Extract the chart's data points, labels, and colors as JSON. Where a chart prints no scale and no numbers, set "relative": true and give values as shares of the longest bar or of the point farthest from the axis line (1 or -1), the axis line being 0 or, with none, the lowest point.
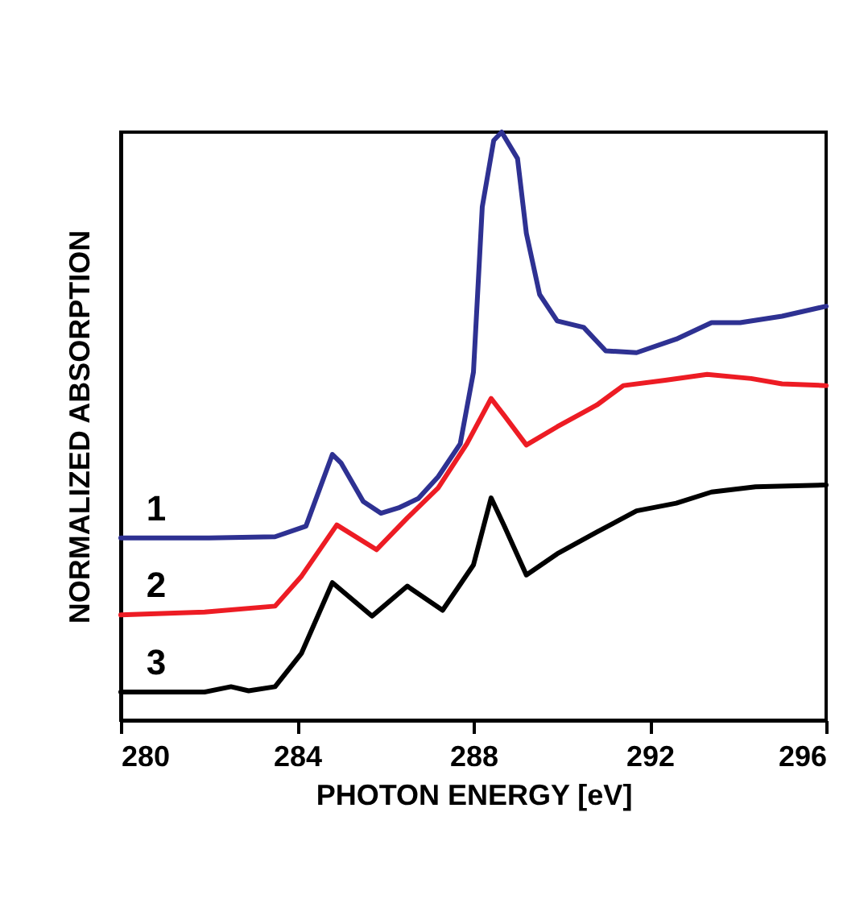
{
  "chart_data": {
    "type": "line",
    "xlabel": "PHOTON ENERGY [eV]",
    "ylabel": "NORMALIZED ABSORPTION",
    "relative": true,
    "xlim": [
      280,
      296
    ],
    "xticks": [
      280,
      284,
      288,
      292,
      296
    ],
    "grid": false,
    "legend": false,
    "x": [
      280,
      282,
      283.5,
      284.2,
      284.8,
      285.0,
      285.5,
      285.9,
      286.3,
      286.75,
      287.2,
      287.7,
      288.0,
      288.2,
      288.46,
      288.64,
      289.0,
      289.2,
      289.5,
      289.9,
      290.5,
      291.0,
      291.7,
      292.6,
      293.4,
      294.05,
      295.0,
      296
    ],
    "series": [
      {
        "name": "1",
        "color": "#2e3192",
        "values": [
          0.31,
          0.31,
          0.312,
          0.33,
          0.452,
          0.437,
          0.372,
          0.352,
          0.361,
          0.377,
          0.414,
          0.47,
          0.592,
          0.873,
          0.986,
          1,
          0.955,
          0.828,
          0.724,
          0.679,
          0.668,
          0.628,
          0.625,
          0.648,
          0.676,
          0.676,
          0.687,
          0.704
        ]
      },
      {
        "name": "2",
        "color": "#ed1c24",
        "x": [
          280,
          281.9,
          283.5,
          284.1,
          284.9,
          285.8,
          286.5,
          287.2,
          287.85,
          288.4,
          288.7,
          289.2,
          289.9,
          290.8,
          291.4,
          292.35,
          293.3,
          294.3,
          295.0,
          296
        ],
        "values": [
          0.179,
          0.184,
          0.194,
          0.245,
          0.332,
          0.29,
          0.344,
          0.395,
          0.47,
          0.547,
          0.518,
          0.468,
          0.499,
          0.536,
          0.569,
          0.578,
          0.588,
          0.581,
          0.572,
          0.569
        ]
      },
      {
        "name": "3",
        "color": "#000000",
        "x": [
          280,
          281.9,
          282.5,
          282.9,
          283.5,
          284.1,
          284.8,
          285.7,
          286.5,
          287.3,
          288.0,
          288.4,
          288.7,
          289.2,
          289.9,
          290.8,
          291.7,
          292.6,
          293.4,
          294.4,
          296
        ],
        "values": [
          0.048,
          0.048,
          0.057,
          0.05,
          0.057,
          0.114,
          0.234,
          0.177,
          0.228,
          0.187,
          0.264,
          0.378,
          0.33,
          0.247,
          0.283,
          0.32,
          0.356,
          0.369,
          0.388,
          0.397,
          0.4
        ]
      }
    ]
  }
}
